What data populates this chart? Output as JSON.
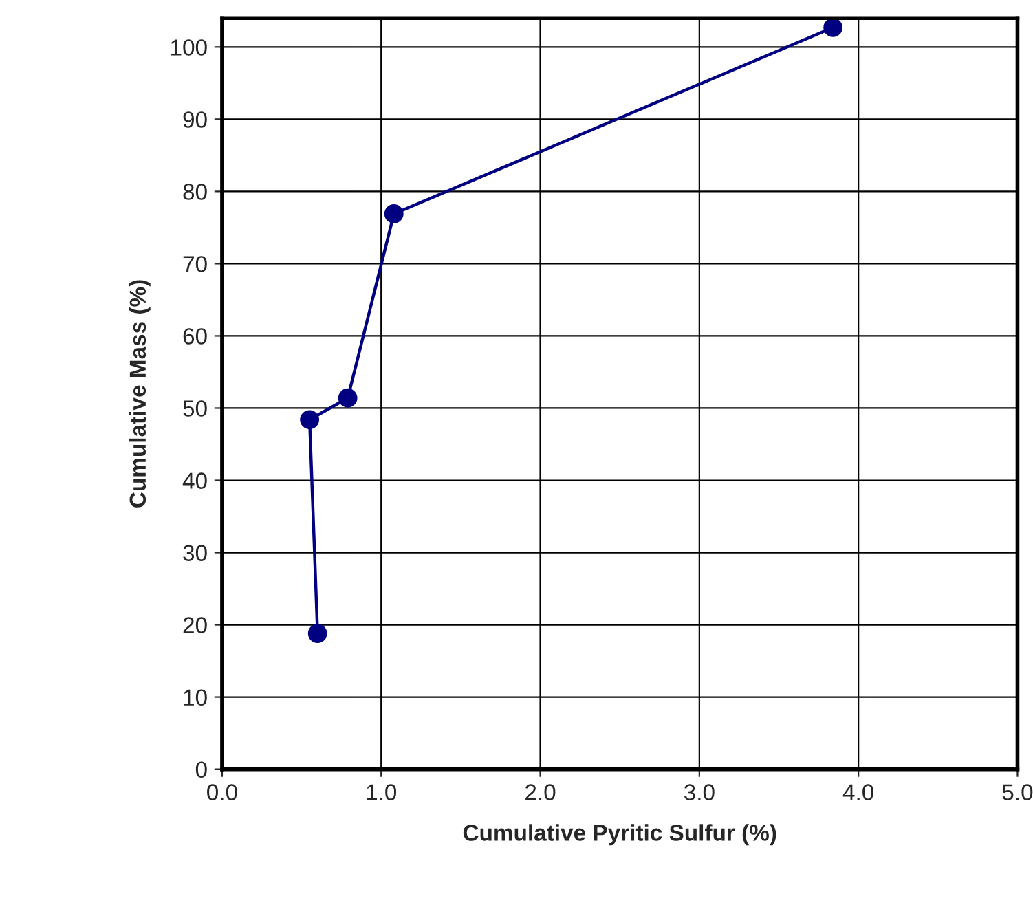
{
  "chart_data": {
    "type": "line",
    "xlabel": "Cumulative Pyritic Sulfur (%)",
    "ylabel": "Cumulative Mass (%)",
    "series": [
      {
        "color": "#000080",
        "x": [
          0.6,
          0.55,
          0.79,
          1.08,
          3.84
        ],
        "values": [
          18.8,
          48.4,
          51.4,
          76.9,
          102.7
        ]
      }
    ],
    "xlim": [
      0,
      5
    ],
    "ylim": [
      0,
      104
    ],
    "xticks": [
      {
        "value": 0,
        "label": "0.0"
      },
      {
        "value": 1,
        "label": "1.0"
      },
      {
        "value": 2,
        "label": "2.0"
      },
      {
        "value": 3,
        "label": "3.0"
      },
      {
        "value": 4,
        "label": "4.0"
      },
      {
        "value": 5,
        "label": "5.0"
      }
    ],
    "yticks": [
      0,
      10,
      20,
      30,
      40,
      50,
      60,
      70,
      80,
      90,
      100
    ],
    "grid": true,
    "marker": "circle",
    "line_style": "solid",
    "legend": false
  }
}
